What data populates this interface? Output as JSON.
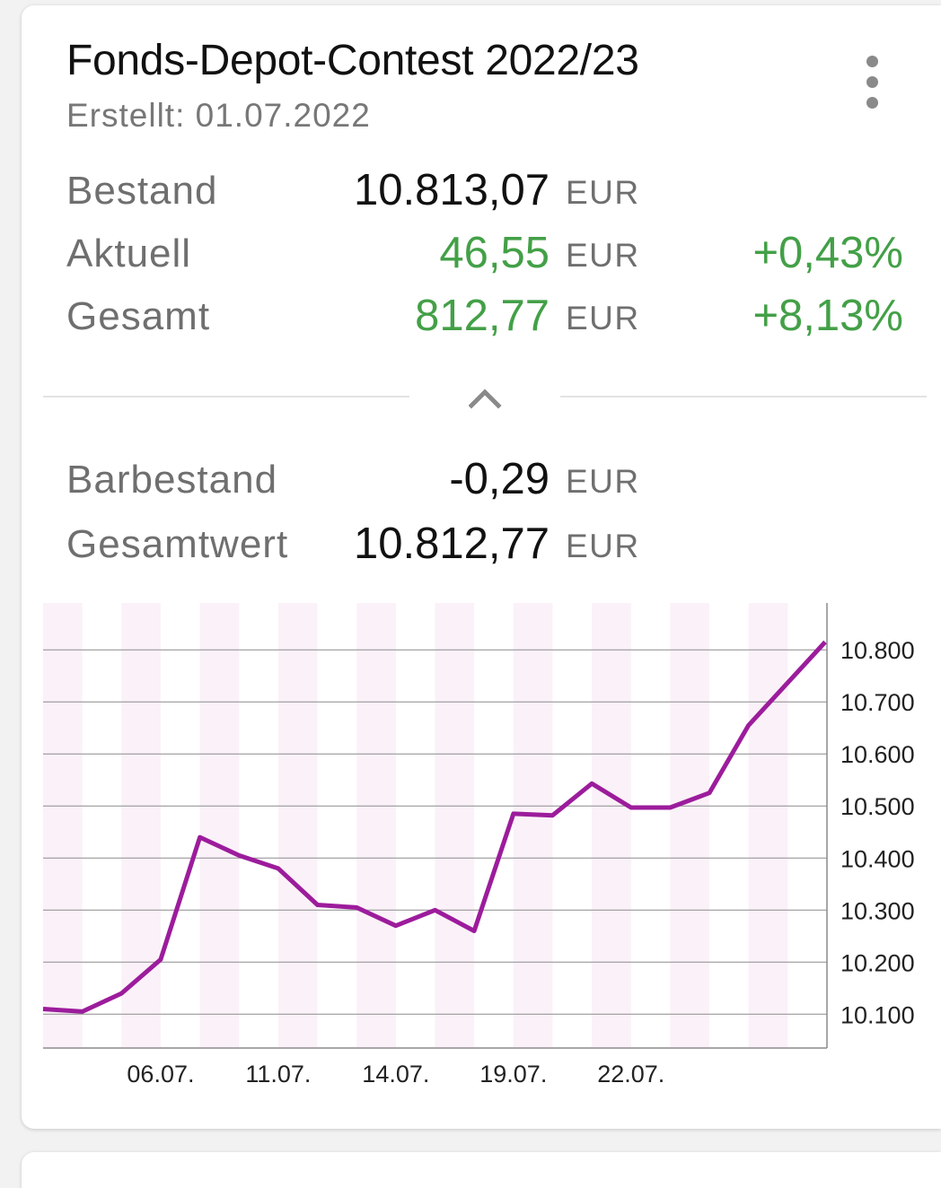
{
  "card": {
    "title": "Fonds-Depot-Contest 2022/23",
    "subtitle": "Erstellt: 01.07.2022",
    "menu_icon": "more-vert-icon",
    "rows": [
      {
        "label": "Bestand",
        "value": "10.813,07",
        "currency": "EUR",
        "percent": ""
      },
      {
        "label": "Aktuell",
        "value": "46,55",
        "currency": "EUR",
        "percent": "+0,43%"
      },
      {
        "label": "Gesamt",
        "value": "812,77",
        "currency": "EUR",
        "percent": "+8,13%"
      }
    ],
    "collapse_icon": "chevron-up-icon",
    "details": [
      {
        "label": "Barbestand",
        "value": "-0,29",
        "currency": "EUR"
      },
      {
        "label": "Gesamtwert",
        "value": "10.812,77",
        "currency": "EUR"
      }
    ]
  },
  "colors": {
    "positive": "#43a047",
    "line": "#9c1c9c",
    "band": "#fbf1f8"
  },
  "chart_data": {
    "type": "line",
    "x": [
      "01.07.",
      "04.07.",
      "05.07.",
      "06.07.",
      "07.07.",
      "08.07.",
      "11.07.",
      "12.07.",
      "13.07.",
      "14.07.",
      "15.07.",
      "18.07.",
      "19.07.",
      "20.07.",
      "21.07.",
      "22.07.",
      "25.07.",
      "26.07.",
      "27.07.",
      "28.07."
    ],
    "x_tick_labels": [
      "06.07.",
      "11.07.",
      "14.07.",
      "19.07.",
      "22.07."
    ],
    "series": [
      {
        "values": [
          10110,
          10105,
          10140,
          10205,
          10440,
          10405,
          10380,
          10310,
          10305,
          10270,
          10300,
          10260,
          10485,
          10482,
          10543,
          10497,
          10497,
          10525,
          10655,
          10815
        ]
      }
    ],
    "y_ticks": [
      "10.100",
      "10.200",
      "10.300",
      "10.400",
      "10.500",
      "10.600",
      "10.700",
      "10.800"
    ],
    "ylim": [
      10035,
      10890
    ],
    "grid": true
  }
}
